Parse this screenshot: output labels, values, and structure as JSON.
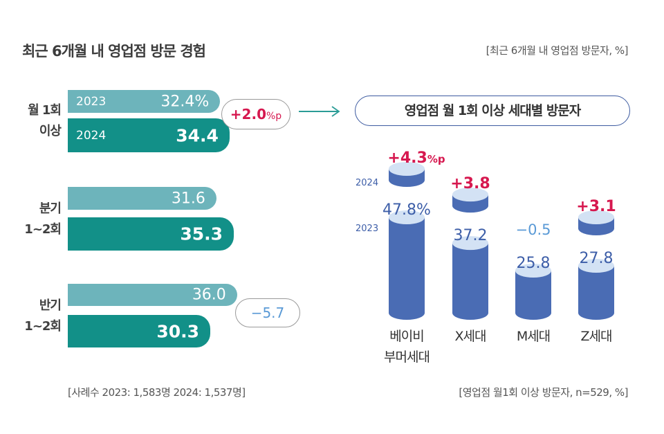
{
  "title": "최근 6개월 내 영업점 방문 경험",
  "unit_note": "[최근 6개월 내 영업점 방문자, %]",
  "left_footnote": "[사례수 2023: 1,583명 2024: 1,537명]",
  "right_footnote": "[영업점 월1회 이상 방문자, n=529, %]",
  "colors": {
    "bar_2023": "#6db4bb",
    "bar_2024": "#129088",
    "cylinder": "#4a6cb4",
    "cylinder_top": "#d3e2f4",
    "increase": "#d6184f",
    "decrease": "#5a9ad6"
  },
  "chart_data": [
    {
      "type": "bar",
      "orientation": "horizontal",
      "title": "최근 6개월 내 영업점 방문 경험",
      "categories": [
        "월 1회 이상",
        "분기 1~2회",
        "반기 1~2회"
      ],
      "category_lines": [
        [
          "월 1회",
          "이상"
        ],
        [
          "분기",
          "1~2회"
        ],
        [
          "반기",
          "1~2회"
        ]
      ],
      "series": [
        {
          "name": "2023",
          "values": [
            32.4,
            31.6,
            36.0
          ],
          "labels": [
            "32.4%",
            "31.6",
            "36.0"
          ]
        },
        {
          "name": "2024",
          "values": [
            34.4,
            35.3,
            30.3
          ],
          "labels": [
            "34.4",
            "35.3",
            "30.3"
          ]
        }
      ],
      "changes": [
        {
          "category": "월 1회 이상",
          "label": "+2.0",
          "suffix": "%p",
          "direction": "up"
        },
        {
          "category": "반기 1~2회",
          "label": "−5.7",
          "suffix": "",
          "direction": "down"
        }
      ]
    },
    {
      "type": "bar",
      "style": "cylinder",
      "title": "영업점 월 1회 이상 세대별 방문자",
      "legend": {
        "top": "2024",
        "bottom": "2023"
      },
      "categories": [
        "베이비 부머세대",
        "X세대",
        "M세대",
        "Z세대"
      ],
      "category_lines": [
        [
          "베이비",
          "부머세대"
        ],
        [
          "X세대"
        ],
        [
          "M세대"
        ],
        [
          "Z세대"
        ]
      ],
      "values_2023": [
        47.8,
        37.2,
        25.8,
        27.8
      ],
      "labels_2023": [
        "47.8%",
        "37.2",
        "25.8",
        "27.8"
      ],
      "changes": [
        {
          "label": "+4.3",
          "suffix": "%p",
          "value": 4.3
        },
        {
          "label": "+3.8",
          "suffix": "",
          "value": 3.8
        },
        {
          "label": "−0.5",
          "suffix": "",
          "value": -0.5
        },
        {
          "label": "+3.1",
          "suffix": "",
          "value": 3.1
        }
      ]
    }
  ]
}
